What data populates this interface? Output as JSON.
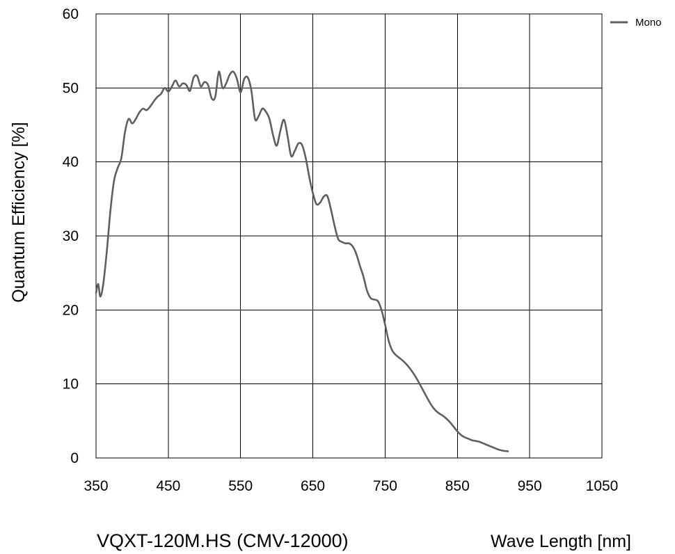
{
  "chart_data": {
    "type": "line",
    "xlabel": "Wave Length [nm]",
    "ylabel": "Quantum Efficiency [%]",
    "caption": "VQXT-120M.HS (CMV-12000)",
    "xlim": [
      350,
      1050
    ],
    "ylim": [
      0,
      60
    ],
    "x_ticks": [
      "350",
      "450",
      "550",
      "650",
      "750",
      "850",
      "950",
      "1050"
    ],
    "y_ticks": [
      "0",
      "10",
      "20",
      "30",
      "40",
      "50",
      "60"
    ],
    "grid": true,
    "legend_position": "top-right",
    "series": [
      {
        "name": "Mono",
        "color": "#5f5f5f",
        "points": [
          [
            350,
            22.3
          ],
          [
            353,
            23.5
          ],
          [
            356,
            21.8
          ],
          [
            360,
            23.5
          ],
          [
            365,
            28
          ],
          [
            370,
            33.5
          ],
          [
            375,
            37.5
          ],
          [
            380,
            39.2
          ],
          [
            385,
            40.5
          ],
          [
            390,
            44
          ],
          [
            395,
            45.8
          ],
          [
            400,
            45.2
          ],
          [
            405,
            45.8
          ],
          [
            410,
            46.7
          ],
          [
            415,
            47.2
          ],
          [
            420,
            47
          ],
          [
            425,
            47.5
          ],
          [
            430,
            48.2
          ],
          [
            435,
            48.8
          ],
          [
            440,
            49.2
          ],
          [
            445,
            50
          ],
          [
            450,
            49.5
          ],
          [
            455,
            50.2
          ],
          [
            460,
            51
          ],
          [
            465,
            50.2
          ],
          [
            470,
            50.6
          ],
          [
            475,
            50.4
          ],
          [
            480,
            49.6
          ],
          [
            485,
            51.4
          ],
          [
            490,
            51.6
          ],
          [
            495,
            50.2
          ],
          [
            500,
            50.8
          ],
          [
            505,
            50.4
          ],
          [
            510,
            48.6
          ],
          [
            515,
            48.8
          ],
          [
            520,
            52.2
          ],
          [
            525,
            50
          ],
          [
            530,
            50.6
          ],
          [
            535,
            51.8
          ],
          [
            540,
            52.2
          ],
          [
            545,
            51.2
          ],
          [
            550,
            49.4
          ],
          [
            555,
            51.2
          ],
          [
            560,
            51.4
          ],
          [
            565,
            49.6
          ],
          [
            570,
            45.8
          ],
          [
            575,
            46.2
          ],
          [
            580,
            47.2
          ],
          [
            585,
            46.8
          ],
          [
            590,
            45.8
          ],
          [
            595,
            43.6
          ],
          [
            600,
            42.2
          ],
          [
            605,
            44.2
          ],
          [
            610,
            45.7
          ],
          [
            615,
            43.5
          ],
          [
            620,
            40.8
          ],
          [
            625,
            41.5
          ],
          [
            630,
            42.5
          ],
          [
            635,
            42.3
          ],
          [
            640,
            40.6
          ],
          [
            645,
            38
          ],
          [
            650,
            35.8
          ],
          [
            655,
            34.3
          ],
          [
            660,
            34.5
          ],
          [
            665,
            35.3
          ],
          [
            670,
            35.4
          ],
          [
            675,
            33.6
          ],
          [
            680,
            31.4
          ],
          [
            685,
            29.6
          ],
          [
            690,
            29.2
          ],
          [
            695,
            29
          ],
          [
            700,
            29
          ],
          [
            705,
            28.6
          ],
          [
            710,
            27.6
          ],
          [
            715,
            26
          ],
          [
            720,
            24.5
          ],
          [
            725,
            22.6
          ],
          [
            730,
            21.6
          ],
          [
            735,
            21.4
          ],
          [
            740,
            21.2
          ],
          [
            745,
            20
          ],
          [
            750,
            18
          ],
          [
            755,
            15.8
          ],
          [
            760,
            14.5
          ],
          [
            765,
            13.9
          ],
          [
            770,
            13.5
          ],
          [
            775,
            13.1
          ],
          [
            780,
            12.6
          ],
          [
            785,
            12
          ],
          [
            790,
            11.3
          ],
          [
            795,
            10.5
          ],
          [
            800,
            9.6
          ],
          [
            805,
            8.7
          ],
          [
            810,
            7.8
          ],
          [
            815,
            7
          ],
          [
            820,
            6.4
          ],
          [
            825,
            6
          ],
          [
            830,
            5.7
          ],
          [
            835,
            5.3
          ],
          [
            840,
            4.8
          ],
          [
            845,
            4.2
          ],
          [
            850,
            3.6
          ],
          [
            855,
            3.1
          ],
          [
            860,
            2.8
          ],
          [
            865,
            2.6
          ],
          [
            870,
            2.4
          ],
          [
            875,
            2.3
          ],
          [
            880,
            2.2
          ],
          [
            885,
            2
          ],
          [
            890,
            1.8
          ],
          [
            895,
            1.6
          ],
          [
            900,
            1.4
          ],
          [
            905,
            1.2
          ],
          [
            910,
            1.05
          ],
          [
            915,
            0.95
          ],
          [
            920,
            0.9
          ]
        ]
      }
    ]
  }
}
